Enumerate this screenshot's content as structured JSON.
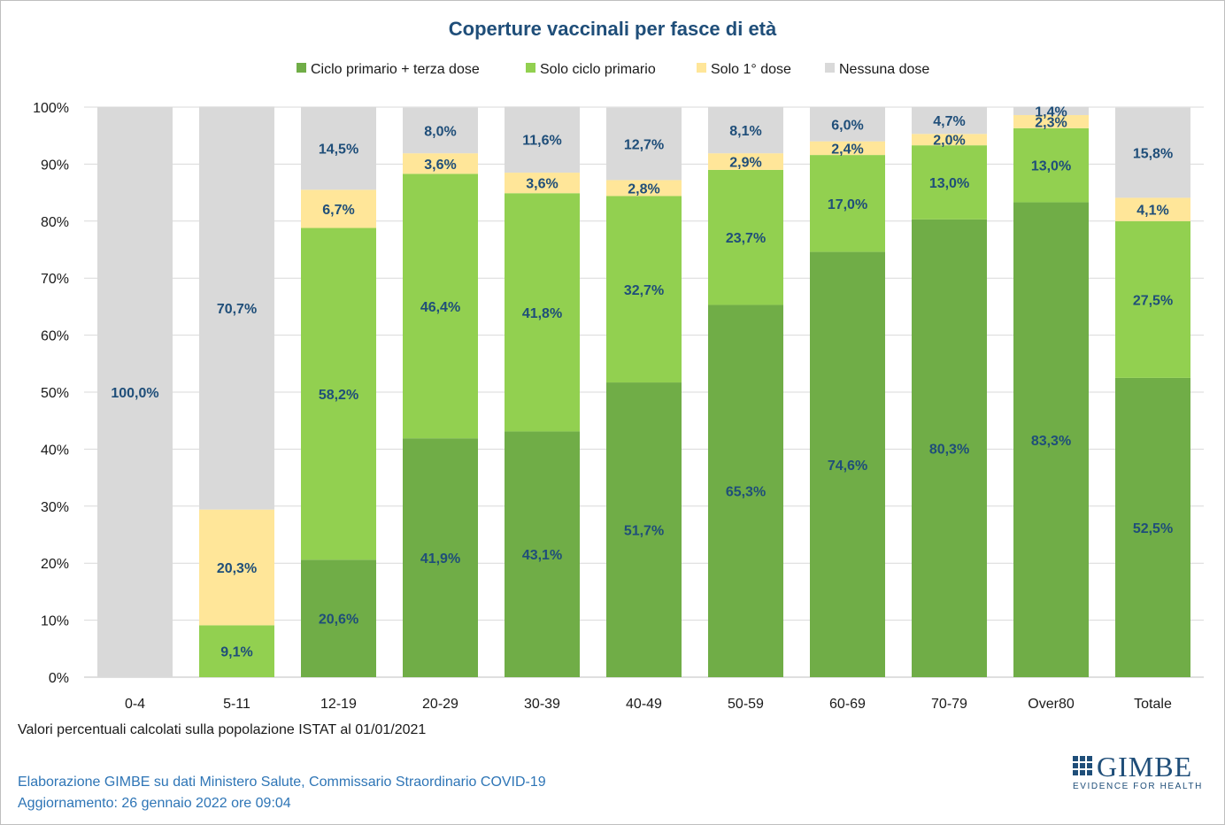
{
  "chart_data": {
    "type": "bar",
    "stacked": true,
    "title": "Coperture vaccinali per fasce di età",
    "categories": [
      "0-4",
      "5-11",
      "12-19",
      "20-29",
      "30-39",
      "40-49",
      "50-59",
      "60-69",
      "70-79",
      "Over80",
      "Totale"
    ],
    "series": [
      {
        "name": "Ciclo primario + terza dose",
        "color": "#70ad47",
        "values": [
          0,
          0,
          20.6,
          41.9,
          43.1,
          51.7,
          65.3,
          74.6,
          80.3,
          83.3,
          52.5
        ]
      },
      {
        "name": "Solo ciclo primario",
        "color": "#92d050",
        "values": [
          0,
          9.1,
          58.2,
          46.4,
          41.8,
          32.7,
          23.7,
          17.0,
          13.0,
          13.0,
          27.5
        ]
      },
      {
        "name": "Solo 1° dose",
        "color": "#ffe699",
        "values": [
          0,
          20.3,
          6.7,
          3.6,
          3.6,
          2.8,
          2.9,
          2.4,
          2.0,
          2.3,
          4.1
        ]
      },
      {
        "name": "Nessuna dose",
        "color": "#d9d9d9",
        "values": [
          100.0,
          70.7,
          14.5,
          8.0,
          11.6,
          12.7,
          8.1,
          6.0,
          4.7,
          1.4,
          15.8
        ]
      }
    ],
    "ylim": [
      0,
      100
    ],
    "yticks": [
      "0%",
      "10%",
      "20%",
      "30%",
      "40%",
      "50%",
      "60%",
      "70%",
      "80%",
      "90%",
      "100%"
    ],
    "legend_position": "top",
    "grid": true,
    "label_color": "#1f4e79"
  },
  "note": "Valori percentuali calcolati sulla popolazione ISTAT al 01/01/2021",
  "footer": {
    "line1": "Elaborazione GIMBE su dati Ministero Salute, Commissario Straordinario COVID-19",
    "line2": "Aggiornamento: 26 gennaio 2022 ore 09:04"
  },
  "logo": {
    "word": "GIMBE",
    "tagline": "EVIDENCE FOR HEALTH",
    "icon": "gimbe-grid-icon"
  }
}
